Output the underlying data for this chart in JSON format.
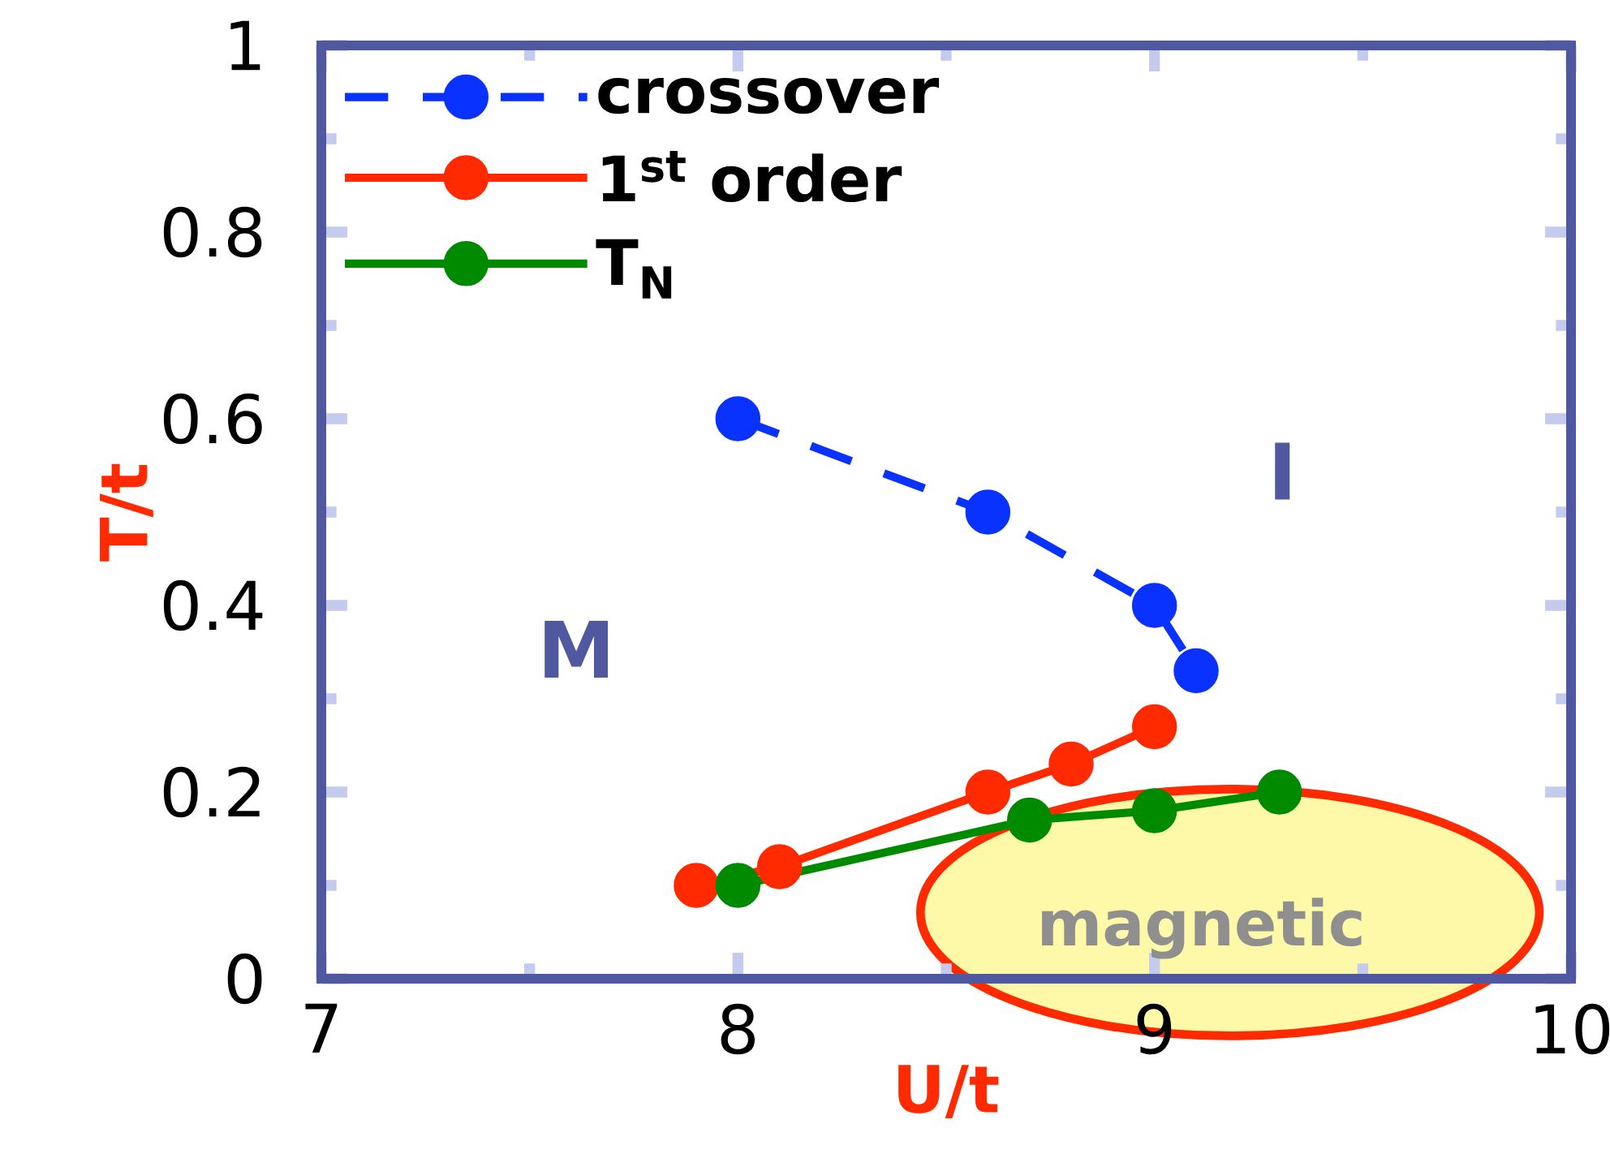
{
  "chart_data": {
    "type": "line",
    "xlabel": "U/t",
    "ylabel": "T/t",
    "xlim": [
      7,
      10
    ],
    "ylim": [
      0,
      1
    ],
    "xticks": [
      7,
      8,
      9,
      10
    ],
    "yticks": [
      0,
      0.2,
      0.4,
      0.6,
      0.8,
      1
    ],
    "legend": "top left",
    "marker": "circle",
    "series": [
      {
        "name": "crossover",
        "color": "#0a32ff",
        "line_style": "dashed",
        "x": [
          8,
          8.6,
          9,
          9.1
        ],
        "values": [
          0.6,
          0.5,
          0.4,
          0.33
        ]
      },
      {
        "name": "1$^{st}$ order",
        "color": "#ff2a00",
        "line_style": "solid",
        "x": [
          7.9,
          8.1,
          8.6,
          8.8,
          9
        ],
        "values": [
          0.1,
          0.12,
          0.2,
          0.23,
          0.27
        ]
      },
      {
        "name": "T$_{N}$",
        "color": "#008a00",
        "line_style": "solid",
        "x": [
          8,
          8.7,
          9,
          9.3
        ],
        "values": [
          0.1,
          0.17,
          0.18,
          0.2
        ]
      }
    ],
    "annotations": [
      "M",
      "I",
      "magnetic"
    ]
  }
}
